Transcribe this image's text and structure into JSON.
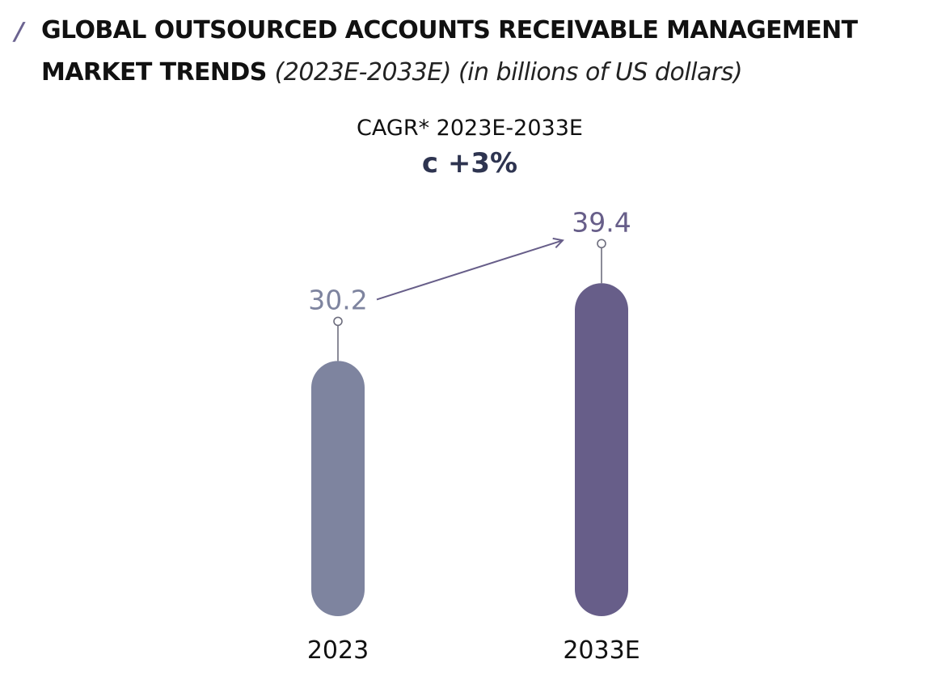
{
  "header": {
    "title_line1": "GLOBAL OUTSOURCED ACCOUNTS RECEIVABLE MANAGEMENT",
    "title_line2": "MARKET TRENDS",
    "subtitle": "(2023E-2033E) (in billions of US dollars)"
  },
  "annotation": {
    "cagr_label": "CAGR* 2023E-2033E",
    "cagr_value": "c +3%"
  },
  "colors": {
    "accent": "#6b6390",
    "bar_2023": "#7e849f",
    "bar_2033": "#675e89",
    "label_2023": "#7e849f",
    "label_2033": "#675e89",
    "arrow": "#675e89",
    "cagr_value": "#2e3450"
  },
  "chart_data": {
    "type": "bar",
    "categories": [
      "2023",
      "2033E"
    ],
    "values": [
      30.2,
      39.4
    ],
    "value_labels": [
      "30.2",
      "39.4"
    ],
    "title": "GLOBAL OUTSOURCED ACCOUNTS RECEIVABLE MANAGEMENT MARKET TRENDS",
    "subtitle": "(2023E-2033E) (in billions of US dollars)",
    "xlabel": "",
    "ylabel": "",
    "annotation": "CAGR* 2023E-2033E c +3%",
    "grid": false,
    "legend": "none"
  }
}
